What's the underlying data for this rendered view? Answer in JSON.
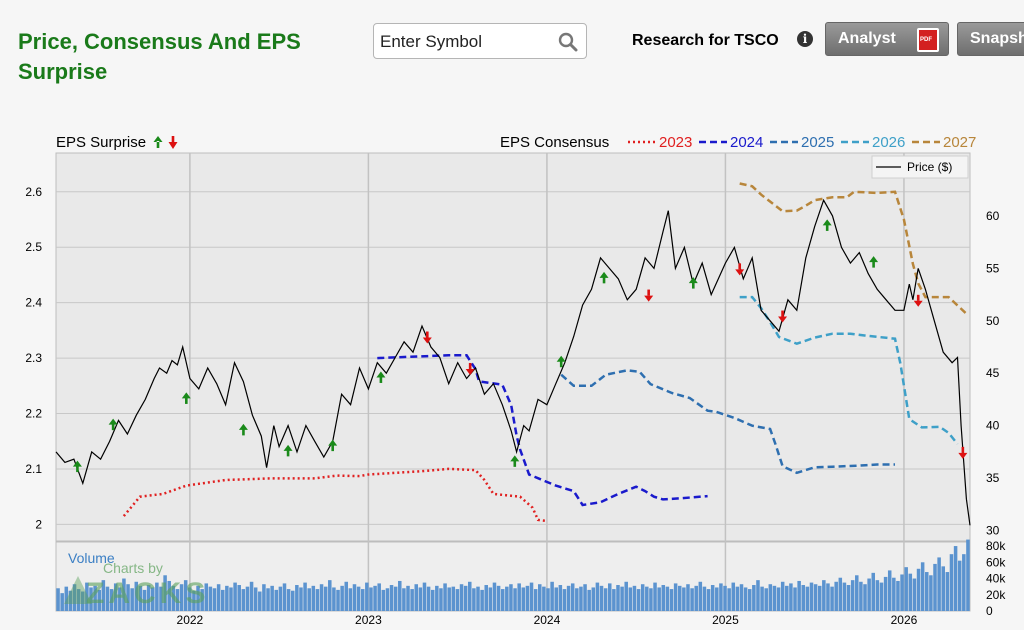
{
  "header": {
    "title": "Price, Consensus And EPS Surprise",
    "search_placeholder": "Enter Symbol",
    "research_label": "Research for TSCO",
    "analyst_label": "Analyst",
    "snapshot_label": "Snapshot"
  },
  "chart_data": {
    "type": "line",
    "surprise_label": "EPS Surprise",
    "consensus_label": "EPS Consensus",
    "price_legend": "Price ($)",
    "volume_label": "Volume",
    "watermark": "Charts by ZACKS",
    "x_ticks": [
      "2022",
      "2023",
      "2024",
      "2025",
      "2026"
    ],
    "x_range": [
      2021.25,
      2026.37
    ],
    "eps_axis": {
      "ticks": [
        "2",
        "2.1",
        "2.2",
        "2.3",
        "2.4",
        "2.5",
        "2.6"
      ],
      "range": [
        1.97,
        2.67
      ]
    },
    "price_axis": {
      "ticks": [
        "30",
        "35",
        "40",
        "45",
        "50",
        "55",
        "60"
      ],
      "range": [
        29,
        66
      ]
    },
    "volume_axis": {
      "ticks": [
        "0",
        "20k",
        "40k",
        "60k",
        "80k"
      ],
      "range": [
        0,
        85
      ]
    },
    "colors": {
      "2023": "#e02020",
      "2024": "#1a1acc",
      "2025": "#2e6fb0",
      "2026": "#3ea0c8",
      "2027": "#b8863b",
      "price": "#000000",
      "volume": "#5b93cf",
      "surprise_up": "#1a8a1a",
      "surprise_down": "#dd1111"
    },
    "consensus_series": [
      {
        "name": "2023",
        "style": "dotted",
        "points": [
          [
            2021.63,
            2.015
          ],
          [
            2021.72,
            2.05
          ],
          [
            2021.85,
            2.055
          ],
          [
            2021.98,
            2.07
          ],
          [
            2022.2,
            2.08
          ],
          [
            2022.45,
            2.083
          ],
          [
            2022.7,
            2.083
          ],
          [
            2022.82,
            2.088
          ],
          [
            2022.95,
            2.087
          ],
          [
            2023.0,
            2.09
          ],
          [
            2023.2,
            2.094
          ],
          [
            2023.3,
            2.096
          ],
          [
            2023.45,
            2.1
          ],
          [
            2023.6,
            2.098
          ],
          [
            2023.65,
            2.08
          ],
          [
            2023.7,
            2.055
          ],
          [
            2023.85,
            2.05
          ],
          [
            2023.92,
            2.03
          ],
          [
            2023.95,
            2.008
          ],
          [
            2024.0,
            2.006
          ]
        ]
      },
      {
        "name": "2024",
        "style": "dashed",
        "points": [
          [
            2023.05,
            2.3
          ],
          [
            2023.2,
            2.302
          ],
          [
            2023.45,
            2.305
          ],
          [
            2023.55,
            2.305
          ],
          [
            2023.6,
            2.28
          ],
          [
            2023.62,
            2.258
          ],
          [
            2023.75,
            2.252
          ],
          [
            2023.8,
            2.215
          ],
          [
            2023.83,
            2.16
          ],
          [
            2023.85,
            2.135
          ],
          [
            2023.9,
            2.09
          ],
          [
            2024.05,
            2.07
          ],
          [
            2024.15,
            2.06
          ],
          [
            2024.2,
            2.035
          ],
          [
            2024.3,
            2.04
          ],
          [
            2024.4,
            2.055
          ],
          [
            2024.5,
            2.068
          ],
          [
            2024.55,
            2.06
          ],
          [
            2024.6,
            2.05
          ],
          [
            2024.65,
            2.045
          ],
          [
            2024.75,
            2.047
          ],
          [
            2024.9,
            2.051
          ]
        ]
      },
      {
        "name": "2025",
        "style": "dashed",
        "points": [
          [
            2024.08,
            2.27
          ],
          [
            2024.15,
            2.25
          ],
          [
            2024.25,
            2.25
          ],
          [
            2024.33,
            2.27
          ],
          [
            2024.45,
            2.278
          ],
          [
            2024.52,
            2.275
          ],
          [
            2024.58,
            2.253
          ],
          [
            2024.7,
            2.237
          ],
          [
            2024.8,
            2.228
          ],
          [
            2024.9,
            2.205
          ],
          [
            2024.95,
            2.203
          ],
          [
            2025.05,
            2.192
          ],
          [
            2025.15,
            2.178
          ],
          [
            2025.25,
            2.172
          ],
          [
            2025.28,
            2.145
          ],
          [
            2025.32,
            2.105
          ],
          [
            2025.4,
            2.093
          ],
          [
            2025.5,
            2.103
          ],
          [
            2025.6,
            2.104
          ],
          [
            2025.75,
            2.106
          ],
          [
            2025.85,
            2.108
          ],
          [
            2025.95,
            2.108
          ]
        ]
      },
      {
        "name": "2026",
        "style": "dashed",
        "points": [
          [
            2025.08,
            2.41
          ],
          [
            2025.15,
            2.41
          ],
          [
            2025.2,
            2.39
          ],
          [
            2025.25,
            2.365
          ],
          [
            2025.3,
            2.338
          ],
          [
            2025.4,
            2.326
          ],
          [
            2025.5,
            2.337
          ],
          [
            2025.6,
            2.344
          ],
          [
            2025.7,
            2.344
          ],
          [
            2025.8,
            2.34
          ],
          [
            2025.95,
            2.335
          ],
          [
            2025.98,
            2.29
          ],
          [
            2026.03,
            2.19
          ],
          [
            2026.1,
            2.175
          ],
          [
            2026.2,
            2.176
          ],
          [
            2026.25,
            2.165
          ],
          [
            2026.3,
            2.145
          ]
        ]
      },
      {
        "name": "2027",
        "style": "dashed",
        "points": [
          [
            2025.08,
            2.615
          ],
          [
            2025.15,
            2.61
          ],
          [
            2025.2,
            2.595
          ],
          [
            2025.32,
            2.565
          ],
          [
            2025.4,
            2.566
          ],
          [
            2025.45,
            2.575
          ],
          [
            2025.5,
            2.585
          ],
          [
            2025.6,
            2.59
          ],
          [
            2025.68,
            2.59
          ],
          [
            2025.72,
            2.6
          ],
          [
            2025.85,
            2.598
          ],
          [
            2025.95,
            2.6
          ],
          [
            2026.0,
            2.55
          ],
          [
            2026.05,
            2.47
          ],
          [
            2026.08,
            2.435
          ],
          [
            2026.12,
            2.41
          ],
          [
            2026.25,
            2.41
          ],
          [
            2026.35,
            2.38
          ]
        ]
      }
    ],
    "price_series": {
      "name": "Price ($)",
      "points": [
        [
          2021.25,
          37.5
        ],
        [
          2021.3,
          36.5
        ],
        [
          2021.35,
          36.8
        ],
        [
          2021.4,
          34.5
        ],
        [
          2021.45,
          37.5
        ],
        [
          2021.5,
          36.8
        ],
        [
          2021.55,
          38.5
        ],
        [
          2021.6,
          40.5
        ],
        [
          2021.65,
          39.2
        ],
        [
          2021.7,
          41.0
        ],
        [
          2021.75,
          42.5
        ],
        [
          2021.8,
          44.5
        ],
        [
          2021.83,
          45.5
        ],
        [
          2021.87,
          45.0
        ],
        [
          2021.9,
          46.2
        ],
        [
          2021.93,
          45.8
        ],
        [
          2021.96,
          47.5
        ],
        [
          2022.0,
          44.5
        ],
        [
          2022.05,
          43.5
        ],
        [
          2022.1,
          45.5
        ],
        [
          2022.15,
          44.0
        ],
        [
          2022.2,
          42.0
        ],
        [
          2022.25,
          46.0
        ],
        [
          2022.3,
          44.2
        ],
        [
          2022.35,
          41.0
        ],
        [
          2022.4,
          39.0
        ],
        [
          2022.43,
          36.0
        ],
        [
          2022.47,
          40.0
        ],
        [
          2022.5,
          38.0
        ],
        [
          2022.55,
          40.0
        ],
        [
          2022.6,
          37.5
        ],
        [
          2022.65,
          40.0
        ],
        [
          2022.7,
          38.5
        ],
        [
          2022.75,
          37.0
        ],
        [
          2022.8,
          38.5
        ],
        [
          2022.85,
          43.0
        ],
        [
          2022.9,
          42.0
        ],
        [
          2022.95,
          45.5
        ],
        [
          2023.0,
          43.5
        ],
        [
          2023.05,
          46.0
        ],
        [
          2023.1,
          45.0
        ],
        [
          2023.15,
          46.5
        ],
        [
          2023.2,
          48.0
        ],
        [
          2023.25,
          47.0
        ],
        [
          2023.3,
          49.5
        ],
        [
          2023.35,
          47.5
        ],
        [
          2023.4,
          46.5
        ],
        [
          2023.45,
          44.0
        ],
        [
          2023.5,
          46.0
        ],
        [
          2023.55,
          44.5
        ],
        [
          2023.6,
          45.5
        ],
        [
          2023.65,
          43.0
        ],
        [
          2023.7,
          44.0
        ],
        [
          2023.75,
          42.0
        ],
        [
          2023.8,
          39.5
        ],
        [
          2023.83,
          37.5
        ],
        [
          2023.87,
          40.0
        ],
        [
          2023.9,
          39.5
        ],
        [
          2023.95,
          42.5
        ],
        [
          2024.0,
          42.0
        ],
        [
          2024.05,
          44.0
        ],
        [
          2024.1,
          46.0
        ],
        [
          2024.15,
          48.5
        ],
        [
          2024.2,
          51.5
        ],
        [
          2024.25,
          53.0
        ],
        [
          2024.3,
          56.0
        ],
        [
          2024.35,
          55.0
        ],
        [
          2024.4,
          54.0
        ],
        [
          2024.45,
          52.0
        ],
        [
          2024.5,
          53.0
        ],
        [
          2024.55,
          56.0
        ],
        [
          2024.6,
          55.0
        ],
        [
          2024.65,
          58.5
        ],
        [
          2024.68,
          60.5
        ],
        [
          2024.72,
          55.0
        ],
        [
          2024.77,
          57.0
        ],
        [
          2024.82,
          53.5
        ],
        [
          2024.87,
          55.5
        ],
        [
          2024.92,
          52.5
        ],
        [
          2025.0,
          55.5
        ],
        [
          2025.05,
          57.0
        ],
        [
          2025.1,
          54.0
        ],
        [
          2025.15,
          56.0
        ],
        [
          2025.2,
          51.0
        ],
        [
          2025.25,
          50.0
        ],
        [
          2025.3,
          49.0
        ],
        [
          2025.35,
          52.0
        ],
        [
          2025.4,
          51.0
        ],
        [
          2025.45,
          56.0
        ],
        [
          2025.5,
          59.0
        ],
        [
          2025.55,
          61.5
        ],
        [
          2025.6,
          60.0
        ],
        [
          2025.65,
          57.0
        ],
        [
          2025.7,
          55.5
        ],
        [
          2025.75,
          56.5
        ],
        [
          2025.8,
          54.5
        ],
        [
          2025.85,
          53.0
        ],
        [
          2025.9,
          52.0
        ],
        [
          2025.95,
          51.0
        ],
        [
          2026.0,
          51.0
        ],
        [
          2026.03,
          53.5
        ],
        [
          2026.05,
          52.0
        ],
        [
          2026.08,
          55.0
        ],
        [
          2026.12,
          53.0
        ],
        [
          2026.17,
          50.0
        ],
        [
          2026.22,
          47.0
        ],
        [
          2026.27,
          46.0
        ],
        [
          2026.3,
          46.5
        ],
        [
          2026.32,
          40.0
        ],
        [
          2026.35,
          33.0
        ],
        [
          2026.37,
          30.5
        ]
      ]
    },
    "surprises": [
      {
        "x": 2021.37,
        "price": 36.0,
        "dir": "up"
      },
      {
        "x": 2021.57,
        "price": 40.0,
        "dir": "up"
      },
      {
        "x": 2021.98,
        "price": 42.5,
        "dir": "up"
      },
      {
        "x": 2022.3,
        "price": 39.5,
        "dir": "up"
      },
      {
        "x": 2022.55,
        "price": 37.5,
        "dir": "up"
      },
      {
        "x": 2022.8,
        "price": 38.0,
        "dir": "up"
      },
      {
        "x": 2023.07,
        "price": 44.5,
        "dir": "up"
      },
      {
        "x": 2023.33,
        "price": 48.5,
        "dir": "down"
      },
      {
        "x": 2023.57,
        "price": 45.5,
        "dir": "down"
      },
      {
        "x": 2023.82,
        "price": 36.5,
        "dir": "up"
      },
      {
        "x": 2024.08,
        "price": 46.0,
        "dir": "up"
      },
      {
        "x": 2024.32,
        "price": 54.0,
        "dir": "up"
      },
      {
        "x": 2024.57,
        "price": 52.5,
        "dir": "down"
      },
      {
        "x": 2024.82,
        "price": 53.5,
        "dir": "up"
      },
      {
        "x": 2025.08,
        "price": 55.0,
        "dir": "down"
      },
      {
        "x": 2025.32,
        "price": 50.5,
        "dir": "down"
      },
      {
        "x": 2025.57,
        "price": 59.0,
        "dir": "up"
      },
      {
        "x": 2025.83,
        "price": 55.5,
        "dir": "up"
      },
      {
        "x": 2026.08,
        "price": 52.0,
        "dir": "down"
      },
      {
        "x": 2026.33,
        "price": 37.5,
        "dir": "down"
      }
    ],
    "volume": [
      28,
      22,
      30,
      25,
      33,
      27,
      24,
      35,
      29,
      31,
      26,
      38,
      30,
      27,
      34,
      29,
      40,
      33,
      28,
      36,
      31,
      26,
      32,
      29,
      35,
      30,
      44,
      37,
      31,
      27,
      33,
      38,
      29,
      25,
      31,
      27,
      34,
      30,
      28,
      33,
      26,
      31,
      29,
      35,
      32,
      27,
      30,
      36,
      29,
      24,
      33,
      28,
      31,
      26,
      30,
      34,
      27,
      25,
      32,
      29,
      35,
      28,
      31,
      27,
      33,
      30,
      38,
      29,
      26,
      31,
      36,
      28,
      33,
      30,
      27,
      35,
      29,
      31,
      34,
      26,
      28,
      32,
      30,
      37,
      28,
      31,
      27,
      33,
      29,
      35,
      30,
      26,
      31,
      28,
      34,
      29,
      30,
      27,
      33,
      31,
      36,
      28,
      30,
      26,
      32,
      29,
      35,
      31,
      27,
      30,
      33,
      28,
      34,
      29,
      31,
      35,
      27,
      33,
      30,
      28,
      36,
      29,
      32,
      27,
      31,
      34,
      28,
      30,
      33,
      26,
      29,
      35,
      31,
      28,
      34,
      27,
      32,
      30,
      36,
      29,
      31,
      27,
      33,
      30,
      28,
      35,
      29,
      32,
      30,
      27,
      34,
      31,
      29,
      33,
      28,
      31,
      36,
      30,
      27,
      32,
      29,
      34,
      31,
      28,
      35,
      30,
      33,
      29,
      27,
      32,
      38,
      30,
      28,
      33,
      31,
      29,
      36,
      31,
      34,
      29,
      37,
      32,
      30,
      35,
      33,
      31,
      38,
      34,
      30,
      36,
      41,
      35,
      32,
      38,
      44,
      36,
      33,
      40,
      47,
      38,
      35,
      42,
      50,
      41,
      37,
      45,
      54,
      46,
      40,
      52,
      60,
      48,
      44,
      58,
      66,
      55,
      48,
      70,
      80,
      62,
      70,
      88
    ]
  }
}
